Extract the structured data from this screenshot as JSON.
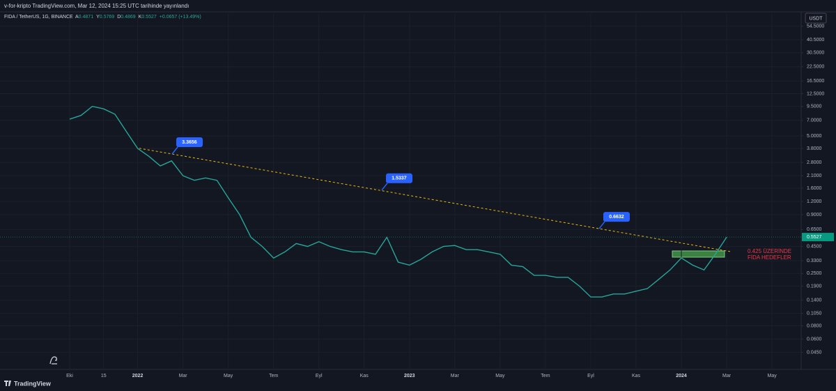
{
  "header": "v-for-kripto TradingView.com, Mar 12, 2024 15:25 UTC tarihinde yayınlandı",
  "footer_logo": "TradingView",
  "currency_button": "USDT",
  "chart_data": {
    "type": "line",
    "title": "FIDA / TetherUS, 1G, BINANCE",
    "ohlc": [
      {
        "key": "A",
        "value": "0.4871"
      },
      {
        "key": "Y",
        "value": "0.5769"
      },
      {
        "key": "D",
        "value": "0.4869"
      },
      {
        "key": "K",
        "value": "0.5527"
      },
      {
        "key": "",
        "value": "+0.0657 (+13.49%)"
      }
    ],
    "categories": [
      "Eki",
      null,
      null,
      "15",
      null,
      null,
      "2022",
      null,
      null,
      null,
      "Mar",
      null,
      null,
      null,
      "May",
      null,
      null,
      null,
      "Tem",
      null,
      null,
      null,
      "Eyl",
      null,
      null,
      null,
      "Kas",
      null,
      null,
      null,
      "2023",
      null,
      null,
      null,
      "Mar",
      null,
      null,
      null,
      "May",
      null,
      null,
      null,
      "Tem",
      null,
      null,
      null,
      "Eyl",
      null,
      null,
      null,
      "Kas",
      null,
      null,
      null,
      "2024",
      null,
      null,
      null,
      "Mar",
      null,
      null,
      null,
      "May"
    ],
    "series": [
      {
        "name": "FIDA",
        "color": "#26a69a",
        "values": [
          7.2,
          7.8,
          9.5,
          9.0,
          8.0,
          5.5,
          3.8,
          3.2,
          2.6,
          2.9,
          2.1,
          1.9,
          2.0,
          1.9,
          1.3,
          0.9,
          0.55,
          0.45,
          0.35,
          0.4,
          0.48,
          0.45,
          0.5,
          0.45,
          0.42,
          0.4,
          0.4,
          0.38,
          0.55,
          0.32,
          0.3,
          0.34,
          0.4,
          0.45,
          0.46,
          0.42,
          0.42,
          0.4,
          0.38,
          0.3,
          0.29,
          0.24,
          0.24,
          0.23,
          0.23,
          0.19,
          0.15,
          0.15,
          0.16,
          0.16,
          0.17,
          0.18,
          0.22,
          0.27,
          0.35,
          0.3,
          0.27,
          0.38,
          0.5527,
          null,
          null,
          null,
          null
        ]
      }
    ],
    "log_scale": true,
    "grid": true,
    "ylim": [
      0.031,
      71
    ],
    "yticks": [
      {
        "value": 54.5,
        "label": "54.5000"
      },
      {
        "value": 40.5,
        "label": "40.5000"
      },
      {
        "value": 30.5,
        "label": "30.5000"
      },
      {
        "value": 22.5,
        "label": "22.5000"
      },
      {
        "value": 16.5,
        "label": "16.5000"
      },
      {
        "value": 12.5,
        "label": "12.5000"
      },
      {
        "value": 9.5,
        "label": "9.5000"
      },
      {
        "value": 7,
        "label": "7.0000"
      },
      {
        "value": 5,
        "label": "5.0000"
      },
      {
        "value": 3.8,
        "label": "3.8000"
      },
      {
        "value": 2.8,
        "label": "2.8000"
      },
      {
        "value": 2.1,
        "label": "2.1000"
      },
      {
        "value": 1.6,
        "label": "1.6000"
      },
      {
        "value": 1.2,
        "label": "1.2000"
      },
      {
        "value": 0.9,
        "label": "0.9000"
      },
      {
        "value": 0.65,
        "label": "0.6500"
      },
      {
        "value": 0.45,
        "label": "0.4500"
      },
      {
        "value": 0.33,
        "label": "0.3300"
      },
      {
        "value": 0.25,
        "label": "0.2500"
      },
      {
        "value": 0.19,
        "label": "0.1900"
      },
      {
        "value": 0.14,
        "label": "0.1400"
      },
      {
        "value": 0.105,
        "label": "0.1050"
      },
      {
        "value": 0.08,
        "label": "0.0800"
      },
      {
        "value": 0.06,
        "label": "0.0600"
      },
      {
        "value": 0.045,
        "label": "0.0450"
      }
    ],
    "last_price": 0.5527,
    "annotations": [
      3.3656,
      1.5337,
      0.6632
    ],
    "note": [
      "0.425 ÜZERİNDE",
      "FİDA HEDEFLER"
    ]
  }
}
